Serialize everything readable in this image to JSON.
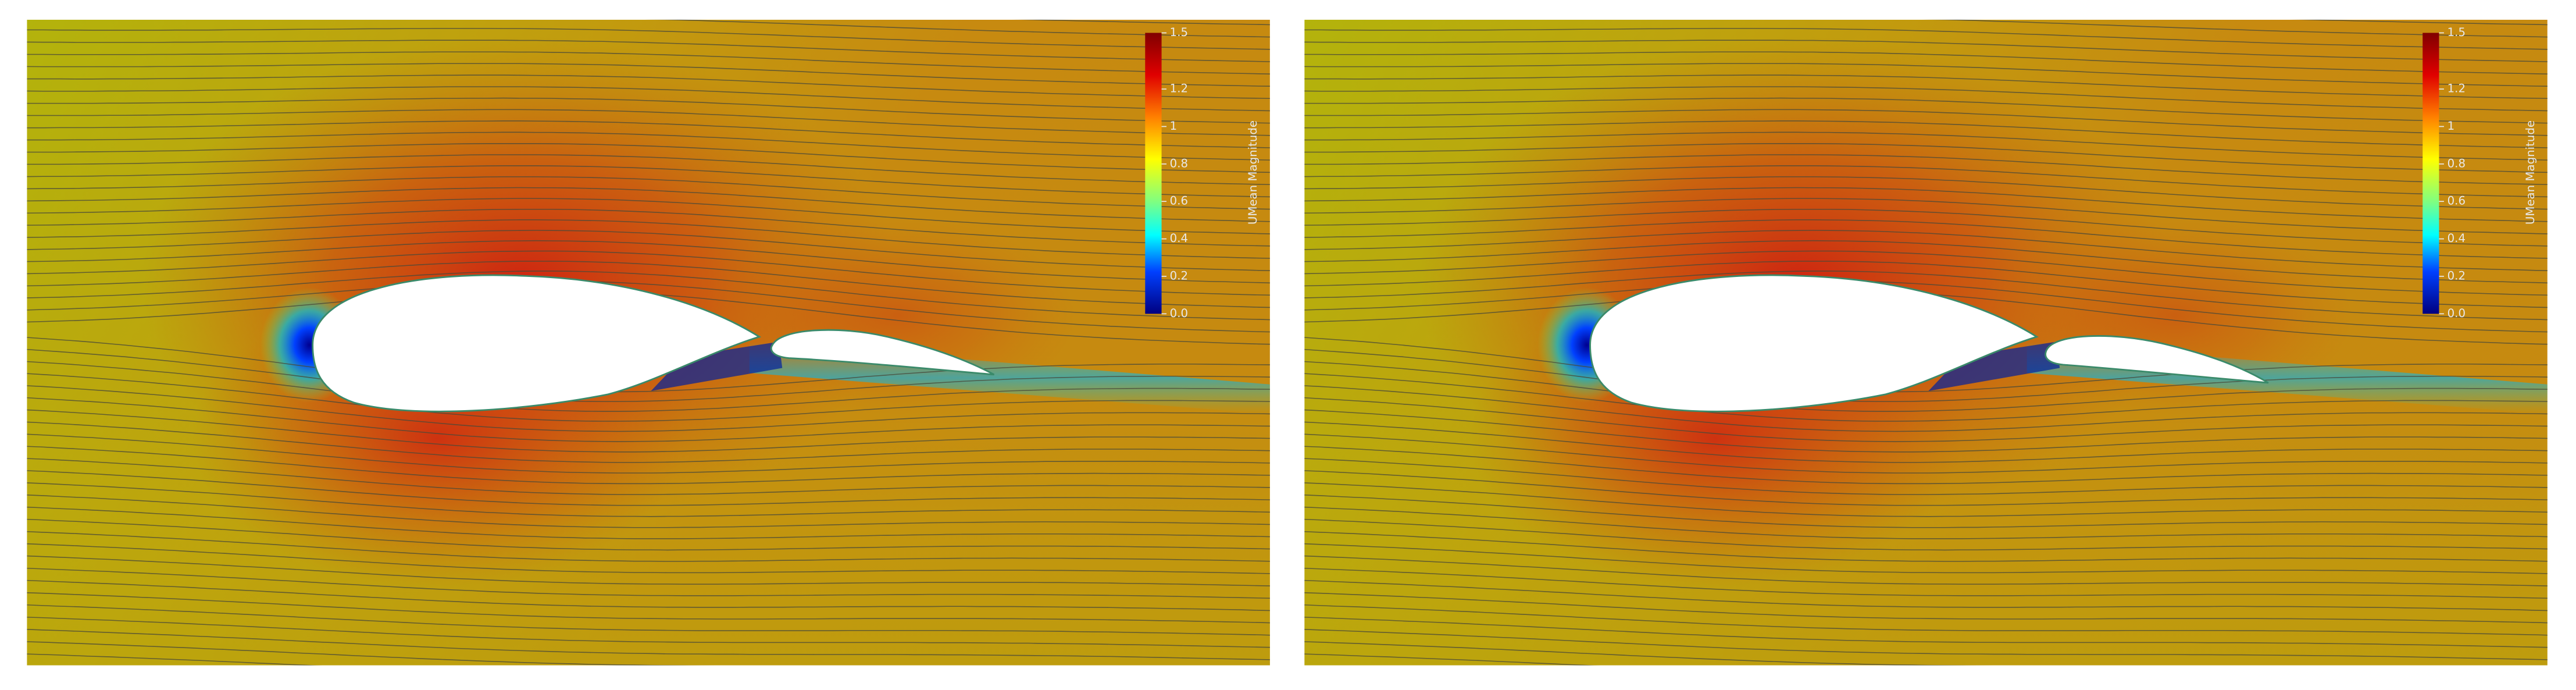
{
  "panels": [
    {
      "colorbar": {
        "title": "UMean Magnitude",
        "range": [
          0,
          1.5
        ],
        "ticks": [
          {
            "value": 0,
            "label": "0.0"
          },
          0.2,
          0.4,
          0.6,
          0.8,
          1,
          1.2,
          1.5
        ]
      }
    },
    {
      "colorbar": {
        "title": "UMean Magnitude",
        "range": [
          0,
          1.5
        ],
        "ticks": [
          {
            "value": 0,
            "label": "0.0"
          },
          0.2,
          0.4,
          0.6,
          0.8,
          1,
          1.2,
          1.5
        ]
      }
    }
  ]
}
